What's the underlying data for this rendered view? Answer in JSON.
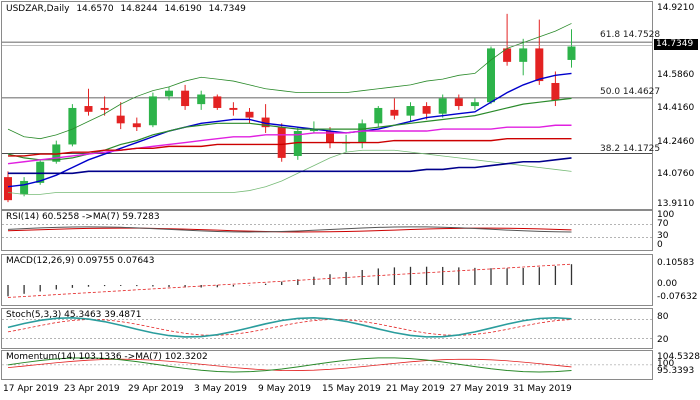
{
  "main": {
    "symbol": "USDZAR,Daily",
    "ohlc": [
      "14.6570",
      "14.8244",
      "14.6190",
      "14.7349"
    ],
    "current_price": "14.7349",
    "y_ticks": [
      "14.9210",
      "14.7349",
      "14.5860",
      "14.4160",
      "14.2460",
      "14.0760",
      "13.9110"
    ],
    "fib_levels": [
      {
        "label": "61.8 14.7528",
        "value": 14.7528
      },
      {
        "label": "50.0 14.4627",
        "value": 14.4627
      },
      {
        "label": "38.2 14.1725",
        "value": 14.1725
      }
    ]
  },
  "rsi": {
    "label": "RSI(14) 60.5258 ->MA(7) 59.7283",
    "ticks": [
      "100",
      "70",
      "30",
      "0"
    ],
    "value": 60.5,
    "ma": 59.7
  },
  "macd": {
    "label": "MACD(12,26,9) 0.09755 0.07643",
    "ticks": [
      "0.10583",
      "0.00",
      "-0.07632"
    ]
  },
  "stoch": {
    "label": "Stoch(5,3,3) 45.3463 39.4871",
    "ticks": [
      "80",
      "20"
    ]
  },
  "momentum": {
    "label": "Momentum(14) 103.1336 ->MA(7) 102.3202",
    "ticks": [
      "104.5328",
      "100",
      "95.3393"
    ]
  },
  "dates": [
    "17 Apr 2019",
    "23 Apr 2019",
    "29 Apr 2019",
    "3 May 2019",
    "9 May 2019",
    "15 May 2019",
    "21 May 2019",
    "27 May 2019",
    "31 May 2019"
  ],
  "colors": {
    "bull": "#2db34a",
    "bear": "#e32222",
    "ma_blue": "#0000cc",
    "ma_navy": "#00008b",
    "ma_magenta": "#e020e0",
    "ma_red": "#cc0000",
    "band_green": "#2a8a2a",
    "band_light": "#77bb77"
  }
}
